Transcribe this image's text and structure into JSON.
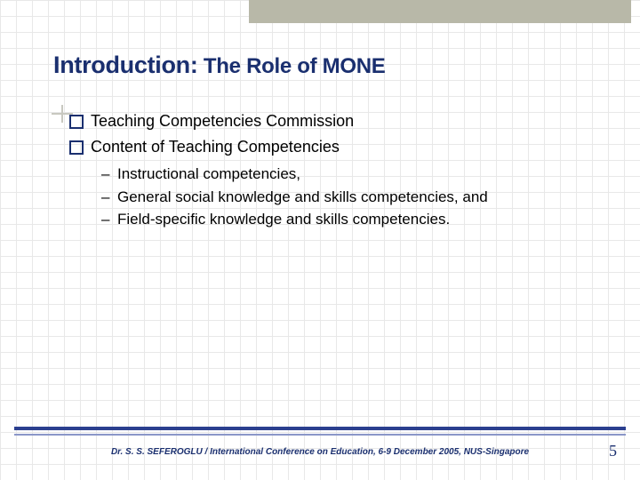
{
  "title": {
    "main": "Introduction:",
    "sub": " The Role of MONE"
  },
  "bullets": [
    "Teaching Competencies Commission",
    "Content of Teaching Competencies"
  ],
  "sub_bullets": [
    "Instructional competencies,",
    "General social knowledge and skills competencies, and",
    "Field-specific knowledge and skills competencies."
  ],
  "footer": "Dr. S. S. SEFEROGLU / International Conference on Education, 6-9 December 2005, NUS-Singapore",
  "page_number": "5",
  "colors": {
    "heading": "#1a2f6f",
    "rule": "#2b3f8f",
    "topbar": "#b8b8a8",
    "grid": "#e8e8e8"
  }
}
